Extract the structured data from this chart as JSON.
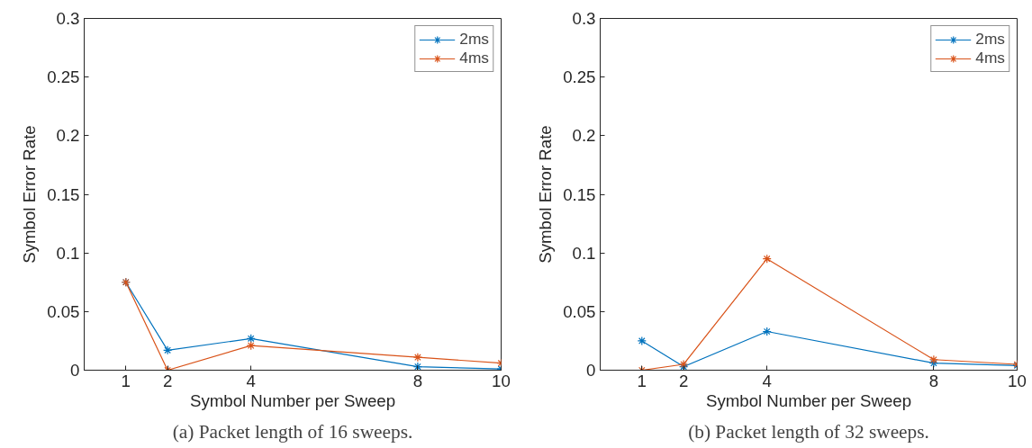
{
  "chart_data": [
    {
      "type": "line",
      "xlabel": "Symbol Number per Sweep",
      "ylabel": "Symbol Error Rate",
      "x": [
        1,
        2,
        4,
        8,
        10
      ],
      "series": [
        {
          "name": "2ms",
          "color": "#0072bd",
          "values": [
            0.075,
            0.017,
            0.027,
            0.003,
            0.001
          ]
        },
        {
          "name": "4ms",
          "color": "#d95319",
          "values": [
            0.075,
            0,
            0.021,
            0.011,
            0.006
          ]
        }
      ],
      "xlim": [
        0,
        10
      ],
      "xticks": [
        1,
        2,
        4,
        8,
        10
      ],
      "ylim": [
        0,
        0.3
      ],
      "yticks": [
        0,
        0.05,
        0.1,
        0.15,
        0.2,
        0.25,
        0.3
      ],
      "grid": false,
      "legend": "top right",
      "marker": "cross",
      "line_style": "solid",
      "annotations": [
        "(a) Packet length of 16 sweeps."
      ]
    },
    {
      "type": "line",
      "xlabel": "Symbol Number per Sweep",
      "ylabel": "Symbol Error Rate",
      "x": [
        1,
        2,
        4,
        8,
        10
      ],
      "series": [
        {
          "name": "2ms",
          "color": "#0072bd",
          "values": [
            0.025,
            0.003,
            0.033,
            0.006,
            0.004
          ]
        },
        {
          "name": "4ms",
          "color": "#d95319",
          "values": [
            0,
            0.005,
            0.095,
            0.009,
            0.005
          ]
        }
      ],
      "xlim": [
        0,
        10
      ],
      "xticks": [
        1,
        2,
        4,
        8,
        10
      ],
      "ylim": [
        0,
        0.3
      ],
      "yticks": [
        0,
        0.05,
        0.1,
        0.15,
        0.2,
        0.25,
        0.3
      ],
      "grid": false,
      "legend": "top right",
      "marker": "cross",
      "line_style": "solid",
      "annotations": [
        "(b) Packet length of 32 sweeps."
      ]
    }
  ]
}
